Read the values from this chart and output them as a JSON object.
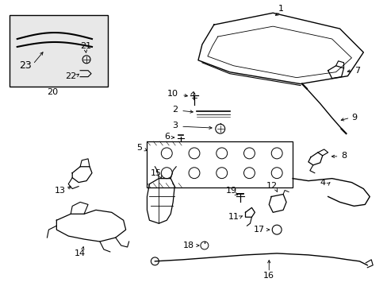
{
  "bg_color": "#ffffff",
  "line_color": "#000000",
  "fig_width": 4.89,
  "fig_height": 3.6,
  "dpi": 100,
  "inset_bg": "#e8e8e8"
}
